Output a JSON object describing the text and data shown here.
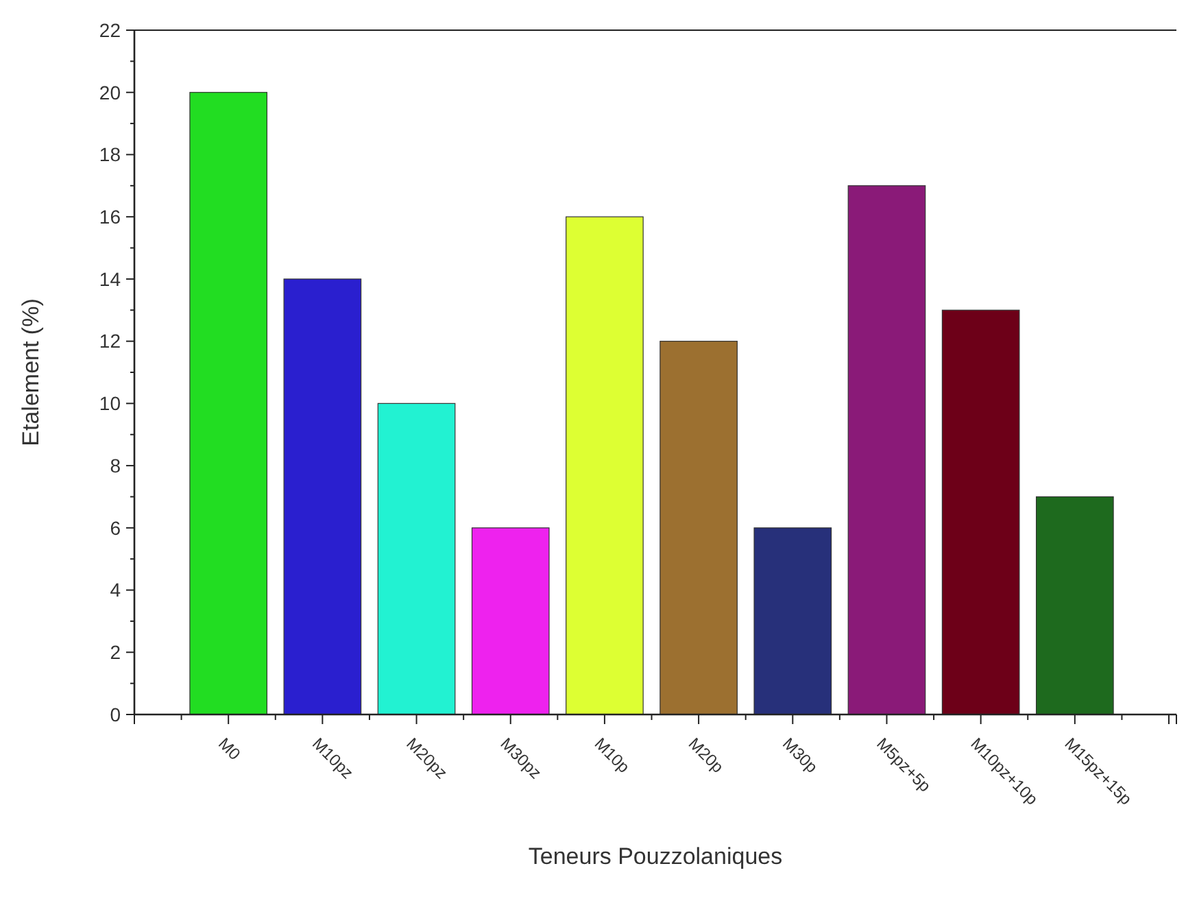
{
  "chart_data": {
    "type": "bar",
    "xlabel": "Teneurs Pouzzolaniques",
    "ylabel": "Etalement (%)",
    "categories": [
      "M0",
      "M10pz",
      "M20pz",
      "M30pz",
      "M10p",
      "M20p",
      "M30p",
      "M5pz+5p",
      "M10pz+10p",
      "M15pz+15p"
    ],
    "values": [
      20,
      14,
      10,
      6,
      16,
      12,
      6,
      17,
      13,
      7
    ],
    "colors": [
      "#22dd22",
      "#2a1fcf",
      "#22f2d2",
      "#ee22ee",
      "#ddff33",
      "#9c7030",
      "#27307a",
      "#8a1a78",
      "#6d0018",
      "#1e6a1e"
    ],
    "ylim": [
      0,
      22
    ],
    "yticks": [
      0,
      2,
      4,
      6,
      8,
      10,
      12,
      14,
      16,
      18,
      20,
      22
    ],
    "grid": false
  }
}
